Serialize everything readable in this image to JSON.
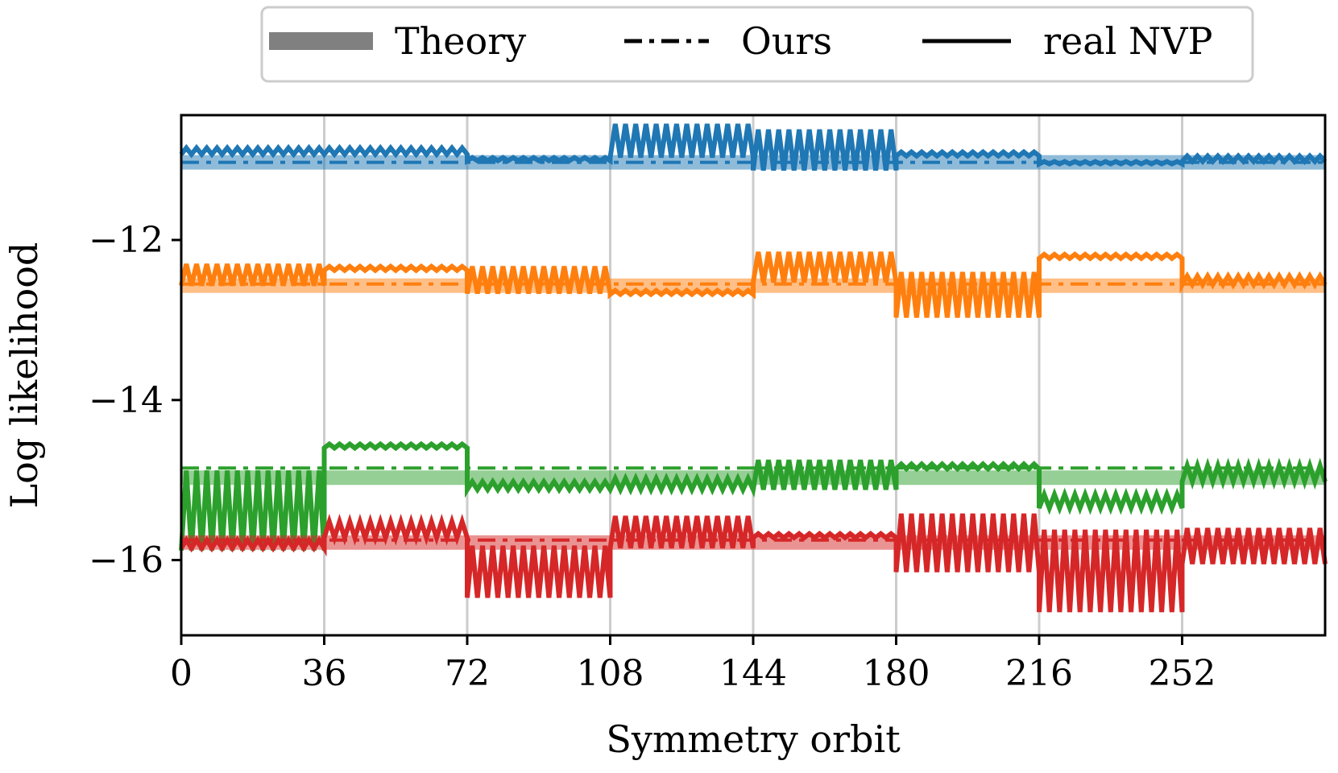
{
  "chart_data": {
    "type": "line",
    "title": "",
    "xlabel": "Symmetry orbit",
    "ylabel": "Log likelihood",
    "xlim": [
      0,
      288
    ],
    "ylim": [
      -16.94,
      -10.44
    ],
    "xticks": [
      0,
      36,
      72,
      108,
      144,
      180,
      216,
      252
    ],
    "xtick_labels": [
      "0",
      "36",
      "72",
      "108",
      "144",
      "180",
      "216",
      "252"
    ],
    "yticks": [
      -12,
      -14,
      -16
    ],
    "ytick_labels": [
      "−12",
      "−14",
      "−16"
    ],
    "vertical_gridlines_at": [
      36,
      72,
      108,
      144,
      180,
      216,
      252
    ],
    "legend": {
      "position": "top-center",
      "entries": [
        {
          "label": "Theory",
          "style": "thick-band"
        },
        {
          "label": "Ours",
          "style": "dash-dot"
        },
        {
          "label": "real NVP",
          "style": "solid"
        }
      ]
    },
    "colors": [
      "#1f77b4",
      "#ff7f0e",
      "#2ca02c",
      "#d62728"
    ],
    "series": [
      {
        "name": "blue",
        "color": "#1f77b4",
        "theory": -11.03,
        "ours": -11.03,
        "real_nvp_segments": [
          {
            "x": [
              0,
              36
            ],
            "low": -10.93,
            "high": -10.85
          },
          {
            "x": [
              36,
              72
            ],
            "low": -10.93,
            "high": -10.85
          },
          {
            "x": [
              72,
              108
            ],
            "low": -11.01,
            "high": -10.97
          },
          {
            "x": [
              108,
              144
            ],
            "low": -10.97,
            "high": -10.55
          },
          {
            "x": [
              144,
              180
            ],
            "low": -11.13,
            "high": -10.62
          },
          {
            "x": [
              180,
              216
            ],
            "low": -10.95,
            "high": -10.9
          },
          {
            "x": [
              216,
              252
            ],
            "low": -11.05,
            "high": -11.02
          },
          {
            "x": [
              252,
              288
            ],
            "low": -11.02,
            "high": -10.95
          }
        ]
      },
      {
        "name": "orange",
        "color": "#ff7f0e",
        "theory": -12.57,
        "ours": -12.55,
        "real_nvp_segments": [
          {
            "x": [
              0,
              36
            ],
            "low": -12.57,
            "high": -12.3
          },
          {
            "x": [
              36,
              72
            ],
            "low": -12.38,
            "high": -12.33
          },
          {
            "x": [
              72,
              108
            ],
            "low": -12.67,
            "high": -12.33
          },
          {
            "x": [
              108,
              144
            ],
            "low": -12.68,
            "high": -12.63
          },
          {
            "x": [
              144,
              180
            ],
            "low": -12.53,
            "high": -12.15
          },
          {
            "x": [
              180,
              216
            ],
            "low": -12.97,
            "high": -12.4
          },
          {
            "x": [
              216,
              252
            ],
            "low": -12.23,
            "high": -12.18
          },
          {
            "x": [
              252,
              288
            ],
            "low": -12.56,
            "high": -12.45
          }
        ]
      },
      {
        "name": "green",
        "color": "#2ca02c",
        "theory": -14.97,
        "ours": -14.85,
        "real_nvp_segments": [
          {
            "x": [
              0,
              36
            ],
            "low": -15.88,
            "high": -14.88
          },
          {
            "x": [
              36,
              72
            ],
            "low": -14.6,
            "high": -14.55
          },
          {
            "x": [
              72,
              108
            ],
            "low": -15.12,
            "high": -15.02
          },
          {
            "x": [
              108,
              144
            ],
            "low": -15.12,
            "high": -14.98
          },
          {
            "x": [
              144,
              180
            ],
            "low": -15.12,
            "high": -14.75
          },
          {
            "x": [
              180,
              216
            ],
            "low": -14.86,
            "high": -14.8
          },
          {
            "x": [
              216,
              252
            ],
            "low": -15.35,
            "high": -15.18
          },
          {
            "x": [
              252,
              288
            ],
            "low": -15.02,
            "high": -14.82
          }
        ]
      },
      {
        "name": "red",
        "color": "#d62728",
        "theory": -15.78,
        "ours": -15.75,
        "real_nvp_segments": [
          {
            "x": [
              0,
              36
            ],
            "low": -15.85,
            "high": -15.75
          },
          {
            "x": [
              36,
              72
            ],
            "low": -15.72,
            "high": -15.52
          },
          {
            "x": [
              72,
              108
            ],
            "low": -16.47,
            "high": -15.82
          },
          {
            "x": [
              108,
              144
            ],
            "low": -15.85,
            "high": -15.45
          },
          {
            "x": [
              144,
              180
            ],
            "low": -15.72,
            "high": -15.67
          },
          {
            "x": [
              180,
              216
            ],
            "low": -16.15,
            "high": -15.42
          },
          {
            "x": [
              216,
              252
            ],
            "low": -16.65,
            "high": -15.62
          },
          {
            "x": [
              252,
              288
            ],
            "low": -16.05,
            "high": -15.6
          }
        ]
      }
    ]
  }
}
